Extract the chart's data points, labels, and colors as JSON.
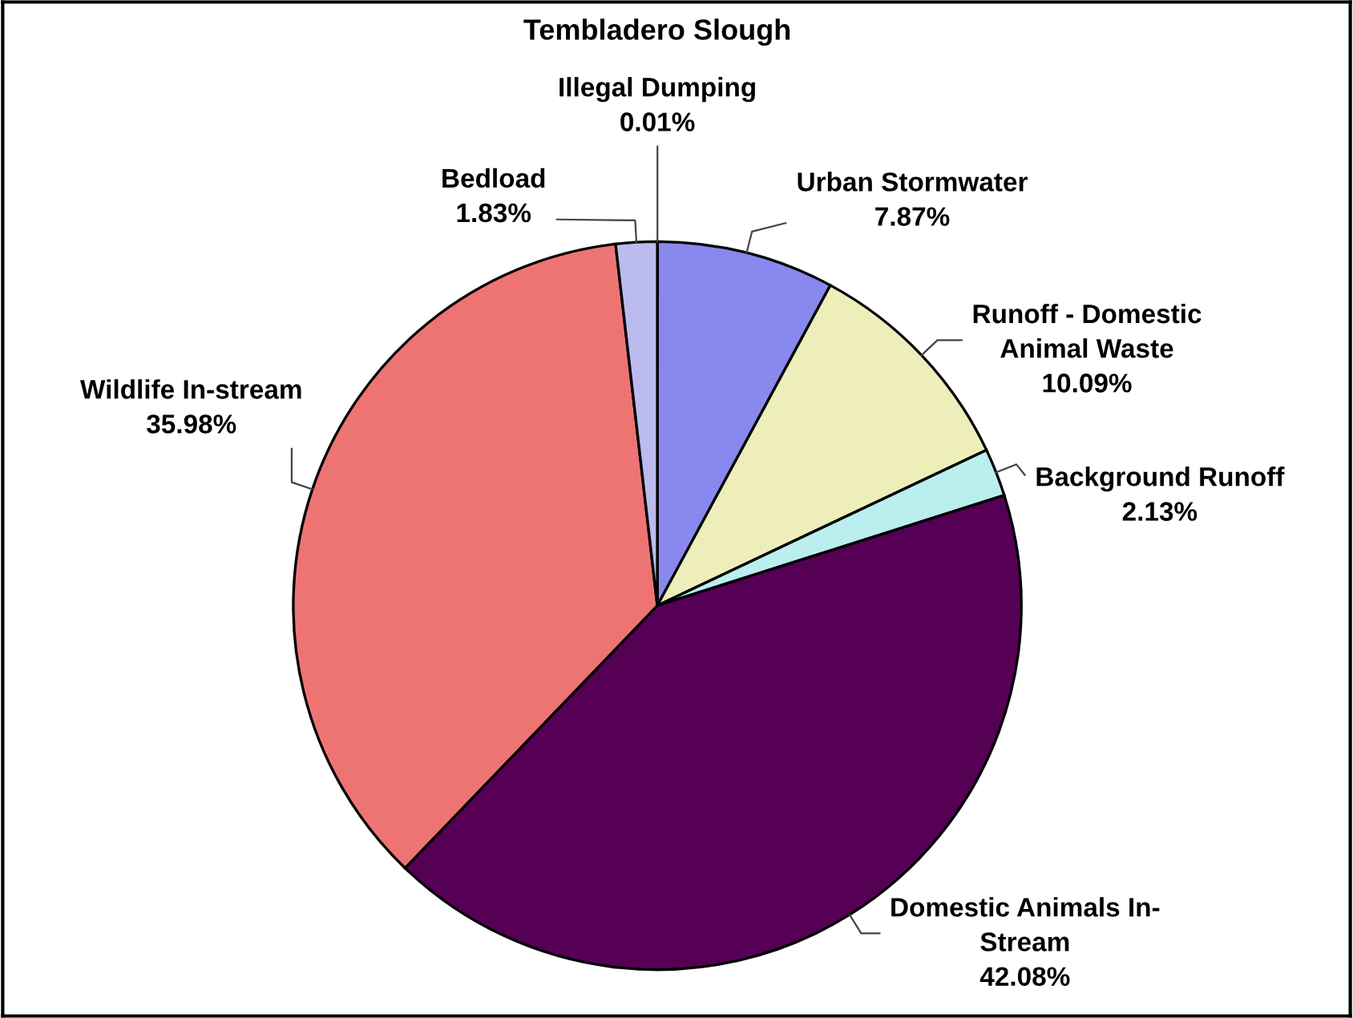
{
  "chart_data": {
    "type": "pie",
    "title": "Tembladero Slough",
    "categories": [
      "Illegal Dumping",
      "Urban Stormwater",
      "Runoff - Domestic\nAnimal Waste",
      "Background Runoff",
      "Domestic Animals In-\nStream",
      "Wildlife In-stream",
      "Bedload"
    ],
    "values": [
      0.01,
      7.87,
      10.09,
      2.13,
      42.08,
      35.98,
      1.83
    ],
    "value_labels": [
      "0.01%",
      "7.87%",
      "10.09%",
      "2.13%",
      "42.08%",
      "35.98%",
      "1.83%"
    ],
    "colors": [
      "#bbbbee",
      "#8888ee",
      "#eeeebb",
      "#bbeeee",
      "#550055",
      "#ee7474",
      "#bbbbee"
    ],
    "legend": false
  }
}
